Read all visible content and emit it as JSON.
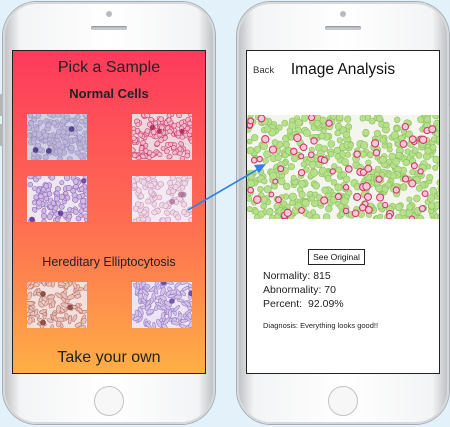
{
  "colors": {
    "gradient_top": "#fe3a5c",
    "gradient_bottom": "#feaf45",
    "arrow": "#2f80e8",
    "normal_cell": "#b6e08a",
    "abnormal_cell": "#d23a6c"
  },
  "picker": {
    "title": "Pick a Sample",
    "normal_section": "Normal Cells",
    "hereditary_section": "Hereditary Elliptocytosis",
    "take_own": "Take your own"
  },
  "analysis": {
    "back_label": "Back",
    "title": "Image Analysis",
    "see_original_label": "See Original",
    "normality_label": "Normality:",
    "normality_value": "815",
    "abnormality_label": "Abnormality:",
    "abnormality_value": "70",
    "percent_label": "Percent:",
    "percent_value": "92.09%",
    "diagnosis": "Diagnosis: Everything looks good!!"
  }
}
